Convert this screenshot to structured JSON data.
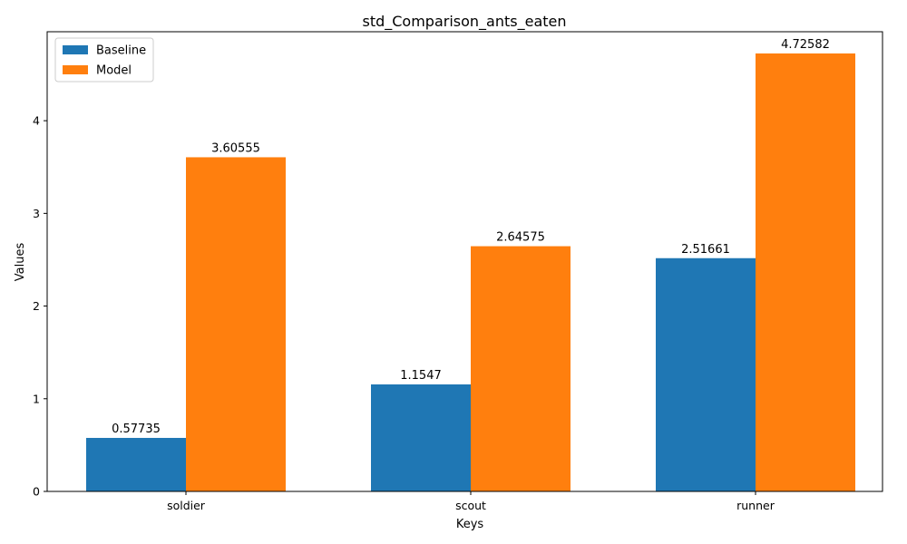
{
  "chart_data": {
    "type": "bar",
    "title": "std_Comparison_ants_eaten",
    "xlabel": "Keys",
    "ylabel": "Values",
    "categories": [
      "soldier",
      "scout",
      "runner"
    ],
    "series": [
      {
        "name": "Baseline",
        "color": "#1f77b4",
        "values": [
          0.57735,
          1.1547,
          2.51661
        ],
        "labels": [
          "0.57735",
          "1.1547",
          "2.51661"
        ]
      },
      {
        "name": "Model",
        "color": "#ff7f0e",
        "values": [
          3.60555,
          2.64575,
          4.72582
        ],
        "labels": [
          "3.60555",
          "2.64575",
          "4.72582"
        ]
      }
    ],
    "ylim": [
      0,
      4.96
    ],
    "yticks": [
      0,
      1,
      2,
      3,
      4
    ],
    "legend": "top-left",
    "grid": false
  }
}
